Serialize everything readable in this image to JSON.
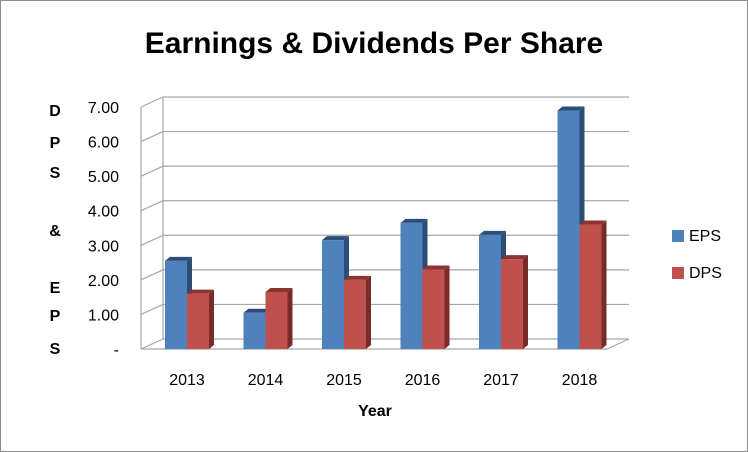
{
  "chart_data": {
    "type": "bar",
    "title": "Earnings & Dividends Per Share",
    "xlabel": "Year",
    "ylabel_letters": [
      "D",
      "P",
      "S",
      "&",
      "E",
      "P",
      "S"
    ],
    "categories": [
      "2013",
      "2014",
      "2015",
      "2016",
      "2017",
      "2018"
    ],
    "series": [
      {
        "name": "EPS",
        "values": [
          2.55,
          1.05,
          3.15,
          3.65,
          3.3,
          6.9
        ]
      },
      {
        "name": "DPS",
        "values": [
          1.6,
          1.65,
          2.0,
          2.3,
          2.6,
          3.6
        ]
      }
    ],
    "ylim": [
      0,
      7
    ],
    "yticks": [
      "-",
      "1.00",
      "2.00",
      "3.00",
      "4.00",
      "5.00",
      "6.00",
      "7.00"
    ],
    "grid": true,
    "legend_position": "right",
    "colors": {
      "EPS": {
        "front": "#4f81bd",
        "side": "#2c4d75",
        "top": "#2c4d75"
      },
      "DPS": {
        "front": "#c0504d",
        "side": "#772c2a",
        "top": "#8b3432"
      },
      "grid": "#a6a6a6"
    }
  }
}
